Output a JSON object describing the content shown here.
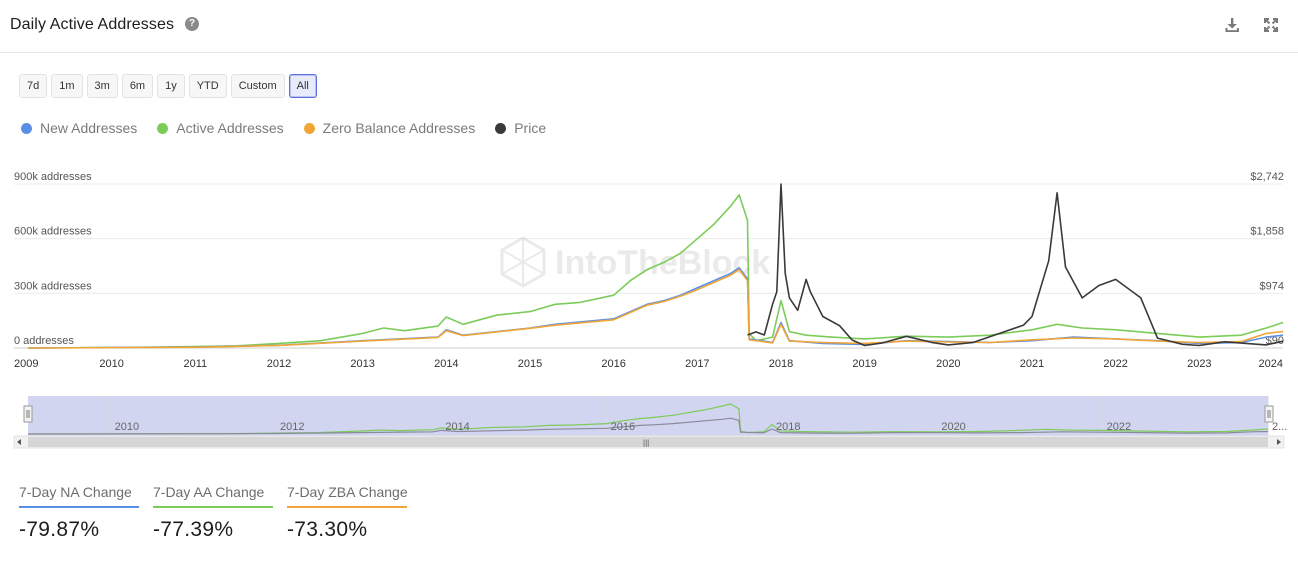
{
  "header": {
    "title": "Daily Active Addresses",
    "help_icon": "question-circle-icon",
    "download_icon": "download-icon",
    "expand_icon": "expand-icon"
  },
  "range_buttons": [
    {
      "label": "7d",
      "active": false
    },
    {
      "label": "1m",
      "active": false
    },
    {
      "label": "3m",
      "active": false
    },
    {
      "label": "6m",
      "active": false
    },
    {
      "label": "1y",
      "active": false
    },
    {
      "label": "YTD",
      "active": false
    },
    {
      "label": "Custom",
      "active": false
    },
    {
      "label": "All",
      "active": true
    }
  ],
  "legend": [
    {
      "label": "New Addresses",
      "color": "#5b8ee6"
    },
    {
      "label": "Active Addresses",
      "color": "#7ccc5a"
    },
    {
      "label": "Zero Balance Addresses",
      "color": "#f0a637"
    },
    {
      "label": "Price",
      "color": "#3a3a3a"
    }
  ],
  "watermark": "IntoTheBlock",
  "chart_data": {
    "type": "line",
    "x_ticks": [
      "2009",
      "2010",
      "2011",
      "2012",
      "2013",
      "2014",
      "2015",
      "2016",
      "2017",
      "2018",
      "2019",
      "2020",
      "2021",
      "2022",
      "2023",
      "2024"
    ],
    "y_left_ticks": [
      "0 addresses",
      "300k addresses",
      "600k addresses",
      "900k addresses"
    ],
    "y_right_ticks": [
      "$90",
      "$974",
      "$1,858",
      "$2,742"
    ],
    "ylim_left": [
      0,
      900000
    ],
    "ylim_right": [
      90,
      2742
    ],
    "grid": true,
    "series": [
      {
        "name": "Active Addresses",
        "color": "#7ccc5a",
        "axis": "left",
        "points": [
          [
            2009.0,
            0
          ],
          [
            2010.0,
            2000
          ],
          [
            2011.0,
            8000
          ],
          [
            2011.5,
            12000
          ],
          [
            2012.0,
            25000
          ],
          [
            2012.5,
            40000
          ],
          [
            2013.0,
            80000
          ],
          [
            2013.25,
            110000
          ],
          [
            2013.5,
            95000
          ],
          [
            2013.9,
            120000
          ],
          [
            2014.0,
            170000
          ],
          [
            2014.2,
            130000
          ],
          [
            2014.6,
            180000
          ],
          [
            2015.0,
            200000
          ],
          [
            2015.3,
            240000
          ],
          [
            2015.6,
            250000
          ],
          [
            2016.0,
            290000
          ],
          [
            2016.2,
            370000
          ],
          [
            2016.4,
            430000
          ],
          [
            2016.6,
            470000
          ],
          [
            2016.8,
            520000
          ],
          [
            2017.0,
            600000
          ],
          [
            2017.2,
            680000
          ],
          [
            2017.4,
            780000
          ],
          [
            2017.5,
            840000
          ],
          [
            2017.6,
            700000
          ],
          [
            2017.62,
            80000
          ],
          [
            2017.7,
            40000
          ],
          [
            2017.9,
            60000
          ],
          [
            2018.0,
            260000
          ],
          [
            2018.1,
            90000
          ],
          [
            2018.3,
            70000
          ],
          [
            2018.6,
            60000
          ],
          [
            2019.0,
            50000
          ],
          [
            2019.5,
            65000
          ],
          [
            2020.0,
            60000
          ],
          [
            2020.5,
            70000
          ],
          [
            2021.0,
            100000
          ],
          [
            2021.3,
            130000
          ],
          [
            2021.6,
            110000
          ],
          [
            2022.0,
            100000
          ],
          [
            2022.5,
            80000
          ],
          [
            2023.0,
            60000
          ],
          [
            2023.5,
            70000
          ],
          [
            2023.8,
            110000
          ],
          [
            2024.0,
            140000
          ]
        ]
      },
      {
        "name": "New Addresses",
        "color": "#5b8ee6",
        "axis": "left",
        "points": [
          [
            2009.0,
            0
          ],
          [
            2011.0,
            5000
          ],
          [
            2012.0,
            15000
          ],
          [
            2013.0,
            40000
          ],
          [
            2013.9,
            60000
          ],
          [
            2014.0,
            100000
          ],
          [
            2014.2,
            70000
          ],
          [
            2015.0,
            110000
          ],
          [
            2015.3,
            130000
          ],
          [
            2016.0,
            160000
          ],
          [
            2016.2,
            200000
          ],
          [
            2016.4,
            240000
          ],
          [
            2016.6,
            260000
          ],
          [
            2016.8,
            290000
          ],
          [
            2017.0,
            330000
          ],
          [
            2017.2,
            370000
          ],
          [
            2017.4,
            410000
          ],
          [
            2017.5,
            440000
          ],
          [
            2017.6,
            380000
          ],
          [
            2017.62,
            50000
          ],
          [
            2017.9,
            30000
          ],
          [
            2018.0,
            140000
          ],
          [
            2018.1,
            40000
          ],
          [
            2018.5,
            25000
          ],
          [
            2019.0,
            20000
          ],
          [
            2019.5,
            40000
          ],
          [
            2020.0,
            35000
          ],
          [
            2020.5,
            30000
          ],
          [
            2021.0,
            40000
          ],
          [
            2021.5,
            60000
          ],
          [
            2022.0,
            50000
          ],
          [
            2022.5,
            40000
          ],
          [
            2023.0,
            25000
          ],
          [
            2023.5,
            30000
          ],
          [
            2023.8,
            60000
          ],
          [
            2024.0,
            70000
          ]
        ]
      },
      {
        "name": "Zero Balance Addresses",
        "color": "#f0a637",
        "axis": "left",
        "points": [
          [
            2009.0,
            0
          ],
          [
            2011.0,
            4000
          ],
          [
            2012.0,
            14000
          ],
          [
            2013.0,
            38000
          ],
          [
            2013.9,
            58000
          ],
          [
            2014.0,
            95000
          ],
          [
            2014.2,
            68000
          ],
          [
            2015.0,
            108000
          ],
          [
            2015.3,
            125000
          ],
          [
            2016.0,
            155000
          ],
          [
            2016.2,
            195000
          ],
          [
            2016.4,
            235000
          ],
          [
            2016.6,
            255000
          ],
          [
            2016.8,
            285000
          ],
          [
            2017.0,
            320000
          ],
          [
            2017.2,
            360000
          ],
          [
            2017.4,
            400000
          ],
          [
            2017.5,
            430000
          ],
          [
            2017.6,
            370000
          ],
          [
            2017.62,
            45000
          ],
          [
            2017.9,
            28000
          ],
          [
            2018.0,
            130000
          ],
          [
            2018.1,
            38000
          ],
          [
            2018.5,
            30000
          ],
          [
            2019.0,
            25000
          ],
          [
            2019.5,
            38000
          ],
          [
            2020.0,
            33000
          ],
          [
            2020.5,
            30000
          ],
          [
            2021.0,
            45000
          ],
          [
            2021.5,
            55000
          ],
          [
            2022.0,
            50000
          ],
          [
            2022.5,
            38000
          ],
          [
            2023.0,
            30000
          ],
          [
            2023.5,
            35000
          ],
          [
            2023.8,
            80000
          ],
          [
            2024.0,
            90000
          ]
        ]
      },
      {
        "name": "Price",
        "color": "#3a3a3a",
        "axis": "right",
        "points": [
          [
            2017.6,
            300
          ],
          [
            2017.7,
            350
          ],
          [
            2017.8,
            300
          ],
          [
            2017.9,
            800
          ],
          [
            2017.95,
            1000
          ],
          [
            2018.0,
            2742
          ],
          [
            2018.05,
            1300
          ],
          [
            2018.1,
            900
          ],
          [
            2018.2,
            700
          ],
          [
            2018.3,
            1200
          ],
          [
            2018.35,
            1000
          ],
          [
            2018.5,
            600
          ],
          [
            2018.7,
            450
          ],
          [
            2018.85,
            220
          ],
          [
            2019.0,
            130
          ],
          [
            2019.2,
            170
          ],
          [
            2019.5,
            280
          ],
          [
            2019.8,
            180
          ],
          [
            2020.0,
            140
          ],
          [
            2020.3,
            180
          ],
          [
            2020.6,
            320
          ],
          [
            2020.9,
            460
          ],
          [
            2021.0,
            600
          ],
          [
            2021.2,
            1500
          ],
          [
            2021.3,
            2600
          ],
          [
            2021.4,
            1400
          ],
          [
            2021.6,
            900
          ],
          [
            2021.8,
            1100
          ],
          [
            2022.0,
            1200
          ],
          [
            2022.3,
            900
          ],
          [
            2022.5,
            250
          ],
          [
            2022.8,
            150
          ],
          [
            2023.0,
            130
          ],
          [
            2023.3,
            190
          ],
          [
            2023.6,
            160
          ],
          [
            2023.8,
            140
          ],
          [
            2024.0,
            200
          ]
        ]
      }
    ],
    "navigator_ticks": [
      "2010",
      "2012",
      "2014",
      "2016",
      "2018",
      "2020",
      "2022",
      "2..."
    ]
  },
  "stats": [
    {
      "label": "7-Day NA Change",
      "value": "-79.87%",
      "color": "#5b8ee6"
    },
    {
      "label": "7-Day AA Change",
      "value": "-77.39%",
      "color": "#7ccc5a"
    },
    {
      "label": "7-Day ZBA Change",
      "value": "-73.30%",
      "color": "#f0a637"
    }
  ]
}
